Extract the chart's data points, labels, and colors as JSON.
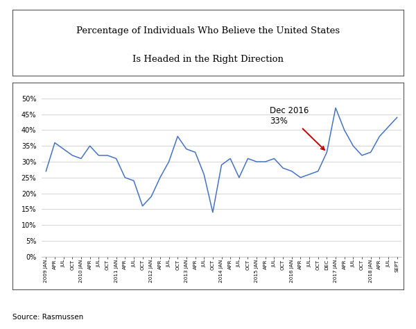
{
  "title_line1": "Percentage of Individuals Who Believe the United States",
  "title_line2": "Is Headed in the Right Direction",
  "source": "Source: Rasmussen",
  "line_color": "#4472C4",
  "annotation_text": "Dec 2016\n33%",
  "annotation_color": "black",
  "arrow_color": "#C00000",
  "ylim": [
    0,
    52
  ],
  "yticks": [
    0,
    5,
    10,
    15,
    20,
    25,
    30,
    35,
    40,
    45,
    50
  ],
  "tick_labels": [
    "2009 JAN",
    "APR",
    "JUL",
    "OCT",
    "2010 JAN",
    "APR",
    "JUL",
    "OCT",
    "2011 JAN",
    "APR",
    "JUL",
    "OCT",
    "2012 JAN",
    "APR",
    "JUL",
    "OCT",
    "2013 JAN",
    "APR",
    "JUL",
    "OCT",
    "2014 JAN",
    "APR",
    "JUL",
    "OCT",
    "2015 JAN",
    "APR",
    "JUL",
    "OCT",
    "2016 JAN",
    "APR",
    "JUL",
    "OCT",
    "DEC",
    "2017 JAN",
    "APR",
    "JUL",
    "OCT",
    "2018 JAN",
    "APR",
    "JUL",
    "SEPT"
  ],
  "values": [
    27,
    36,
    34,
    32,
    31,
    35,
    32,
    32,
    31,
    25,
    24,
    16,
    19,
    25,
    30,
    38,
    34,
    33,
    26,
    14,
    29,
    31,
    25,
    31,
    30,
    30,
    31,
    28,
    27,
    25,
    26,
    27,
    33,
    47,
    40,
    35,
    32,
    33,
    38,
    41,
    44
  ],
  "dec2016_index": 32,
  "dec2016_value": 33,
  "bg_color": "#f0f0f0",
  "plot_bg_color": "#f5f5f5"
}
